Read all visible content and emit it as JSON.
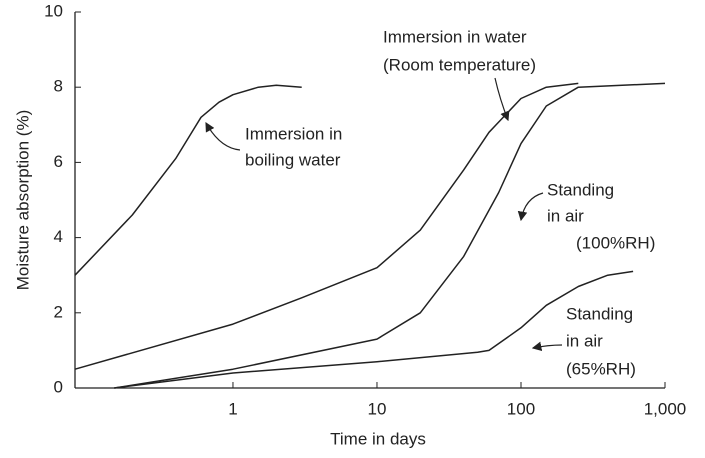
{
  "chart_data": {
    "type": "line",
    "xlabel": "Time in days",
    "ylabel": "Moisture absorption (%)",
    "xscale": "log",
    "xlim": [
      0.08,
      1000
    ],
    "ylim": [
      0,
      10
    ],
    "xticks": [
      1,
      10,
      100,
      {
        "value": 1000,
        "label": "1,000"
      }
    ],
    "yticks": [
      0,
      2,
      4,
      6,
      8,
      10
    ],
    "color": "#222222",
    "series": [
      {
        "label": [
          "Immersion in",
          "boiling water"
        ],
        "x": [
          0.08,
          0.2,
          0.4,
          0.6,
          0.8,
          1,
          1.5,
          2,
          3
        ],
        "values": [
          3.0,
          4.6,
          6.1,
          7.2,
          7.6,
          7.8,
          8.0,
          8.05,
          8.0
        ]
      },
      {
        "label": [
          "Immersion in water",
          "(Room temperature)"
        ],
        "x": [
          0.08,
          1,
          3,
          10,
          20,
          40,
          60,
          100,
          150,
          250
        ],
        "values": [
          0.5,
          1.7,
          2.4,
          3.2,
          4.2,
          5.8,
          6.8,
          7.7,
          8.0,
          8.1
        ]
      },
      {
        "label": [
          "Standing",
          "in air",
          "(100%RH)"
        ],
        "x": [
          0.15,
          1,
          10,
          20,
          40,
          70,
          100,
          150,
          250,
          1000
        ],
        "values": [
          0,
          0.5,
          1.3,
          2.0,
          3.5,
          5.2,
          6.5,
          7.5,
          8.0,
          8.1
        ]
      },
      {
        "label": [
          "Standing",
          "in air",
          "(65%RH)"
        ],
        "x": [
          0.15,
          1,
          10,
          50,
          60,
          100,
          150,
          250,
          400,
          600
        ],
        "values": [
          0,
          0.4,
          0.7,
          0.95,
          1.0,
          1.6,
          2.2,
          2.7,
          3.0,
          3.1
        ]
      }
    ]
  }
}
